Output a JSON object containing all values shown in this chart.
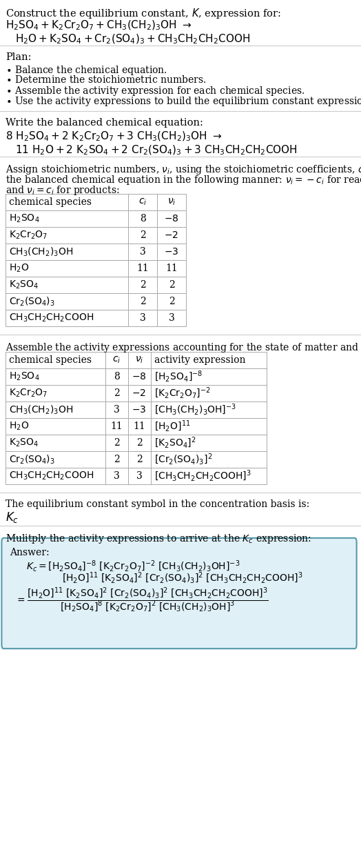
{
  "bg_color": "#ffffff",
  "text_color": "#000000",
  "table_border_color": "#aaaaaa",
  "answer_box_facecolor": "#dff0f7",
  "answer_box_edgecolor": "#5599aa",
  "figsize": [
    5.24,
    12.35
  ],
  "dpi": 100
}
